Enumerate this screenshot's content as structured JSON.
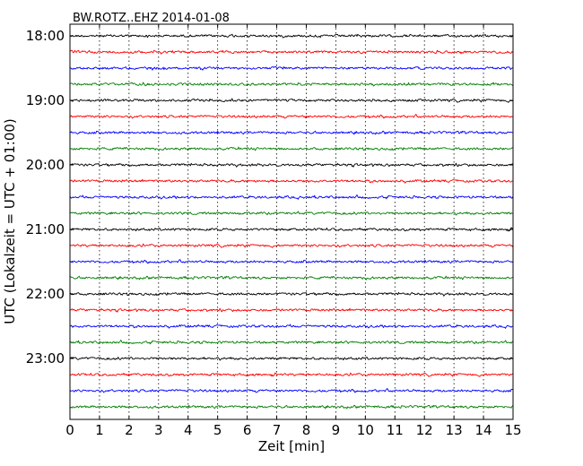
{
  "chart_data": {
    "type": "line",
    "title": "BW.ROTZ..EHZ 2014-01-08",
    "xlabel": "Zeit  [min]",
    "ylabel": "UTC (Lokalzeit = UTC + 01:00)",
    "xlim": [
      0,
      15
    ],
    "x_ticks": [
      "0",
      "1",
      "2",
      "3",
      "4",
      "5",
      "6",
      "7",
      "8",
      "9",
      "10",
      "11",
      "12",
      "13",
      "14",
      "15"
    ],
    "y_ticks": [
      "18:00",
      "19:00",
      "20:00",
      "21:00",
      "22:00",
      "23:00"
    ],
    "grid": "vertical dotted at each minute",
    "trace_interval_min": 15,
    "colors": [
      "#000000",
      "#ff0000",
      "#0000ff",
      "#007f00"
    ],
    "traces": [
      {
        "start": "18:00",
        "color": "#000000"
      },
      {
        "start": "18:15",
        "color": "#ff0000"
      },
      {
        "start": "18:30",
        "color": "#0000ff"
      },
      {
        "start": "18:45",
        "color": "#007f00"
      },
      {
        "start": "19:00",
        "color": "#000000"
      },
      {
        "start": "19:15",
        "color": "#ff0000"
      },
      {
        "start": "19:30",
        "color": "#0000ff"
      },
      {
        "start": "19:45",
        "color": "#007f00"
      },
      {
        "start": "20:00",
        "color": "#000000"
      },
      {
        "start": "20:15",
        "color": "#ff0000"
      },
      {
        "start": "20:30",
        "color": "#0000ff"
      },
      {
        "start": "20:45",
        "color": "#007f00"
      },
      {
        "start": "21:00",
        "color": "#000000"
      },
      {
        "start": "21:15",
        "color": "#ff0000"
      },
      {
        "start": "21:30",
        "color": "#0000ff"
      },
      {
        "start": "21:45",
        "color": "#007f00"
      },
      {
        "start": "22:00",
        "color": "#000000"
      },
      {
        "start": "22:15",
        "color": "#ff0000"
      },
      {
        "start": "22:30",
        "color": "#0000ff"
      },
      {
        "start": "22:45",
        "color": "#007f00"
      },
      {
        "start": "23:00",
        "color": "#000000"
      },
      {
        "start": "23:15",
        "color": "#ff0000"
      },
      {
        "start": "23:30",
        "color": "#0000ff"
      },
      {
        "start": "23:45",
        "color": "#007f00"
      }
    ]
  }
}
